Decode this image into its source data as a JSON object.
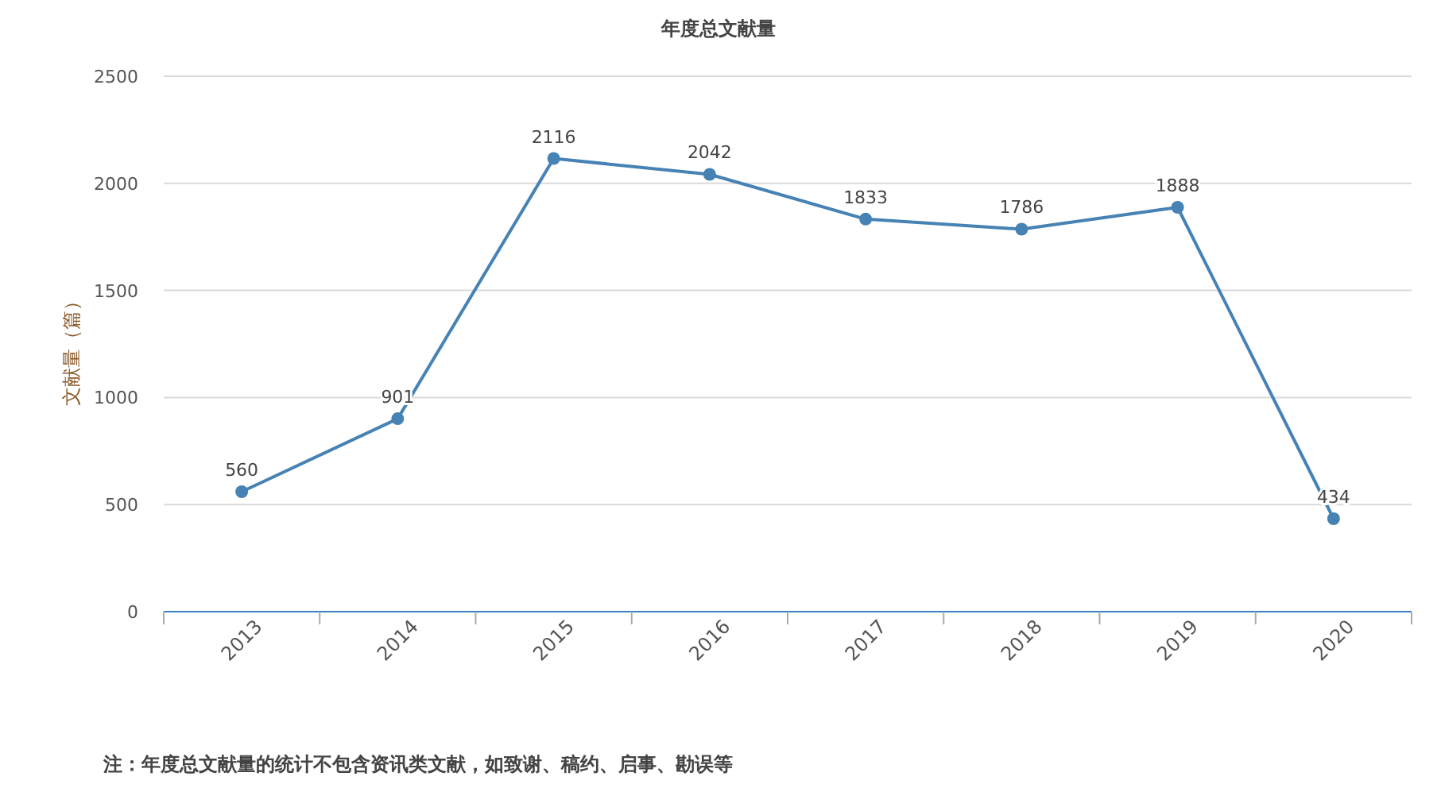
{
  "chart_data": {
    "type": "line",
    "title": "年度总文献量",
    "ylabel": "文献量（篇）",
    "categories": [
      "2013",
      "2014",
      "2015",
      "2016",
      "2017",
      "2018",
      "2019",
      "2020"
    ],
    "series": [
      {
        "color": "#4682b4",
        "values": [
          560,
          901,
          2116,
          2042,
          1833,
          1786,
          1888,
          434
        ]
      }
    ],
    "ylim": [
      0,
      2500
    ],
    "yticks": [
      0,
      500,
      1000,
      1500,
      2000,
      2500
    ],
    "grid": "y",
    "data_labels": true,
    "marker": "circle",
    "annotations": [
      "注：年度总文献量的统计不包含资讯类文献，如致谢、稿约、启事、勘误等"
    ]
  }
}
